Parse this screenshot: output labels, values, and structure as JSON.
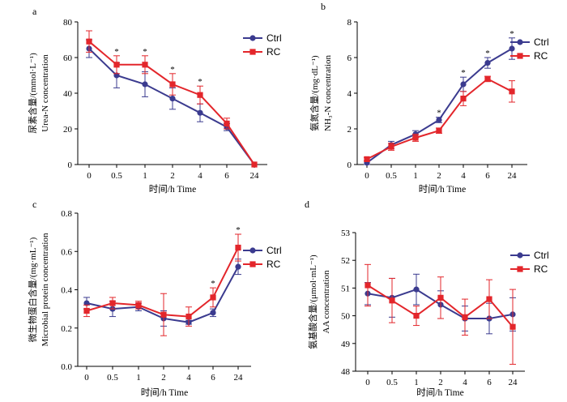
{
  "colors": {
    "Ctrl": "#3b3b8f",
    "RC": "#e3262b"
  },
  "chart_data": [
    {
      "panel": "a",
      "type": "line",
      "categories": [
        "0",
        "0.5",
        "1",
        "2",
        "4",
        "6",
        "24"
      ],
      "ylabel_cn": "尿素含量/(mmol·L⁻¹)",
      "ylabel_en": "Urea-N concentration",
      "xlabel": "时间/h Time",
      "ylim": [
        0,
        80
      ],
      "yticks": [
        "0",
        "20",
        "40",
        "60",
        "80"
      ],
      "legend": "top-right",
      "series": [
        {
          "name": "Ctrl",
          "values": [
            65,
            50,
            45,
            37,
            29,
            21,
            0
          ],
          "errors": [
            5,
            7,
            7,
            6,
            5,
            2,
            0
          ]
        },
        {
          "name": "RC",
          "values": [
            69,
            56,
            56,
            45,
            39,
            23,
            0
          ],
          "errors": [
            6,
            5,
            5,
            6,
            5,
            3,
            0
          ]
        }
      ],
      "significance": [
        "",
        "*",
        "*",
        "*",
        "*",
        "",
        ""
      ]
    },
    {
      "panel": "b",
      "type": "line",
      "categories": [
        "0",
        "0.5",
        "1",
        "2",
        "4",
        "6",
        "24"
      ],
      "ylabel_cn": "氨氮含量/(mg·dL⁻¹)",
      "ylabel_en": "NH₃-N concentration",
      "xlabel": "时间/h Time",
      "ylim": [
        0,
        8
      ],
      "yticks": [
        "0",
        "2",
        "4",
        "6",
        "8"
      ],
      "legend": "top-right",
      "series": [
        {
          "name": "Ctrl",
          "values": [
            0.1,
            1.1,
            1.7,
            2.5,
            4.5,
            5.7,
            6.5
          ],
          "errors": [
            0.1,
            0.2,
            0.2,
            0.15,
            0.4,
            0.3,
            0.6
          ]
        },
        {
          "name": "RC",
          "values": [
            0.3,
            1.0,
            1.5,
            1.9,
            3.7,
            4.8,
            4.1
          ],
          "errors": [
            0.1,
            0.2,
            0.2,
            0.15,
            0.4,
            0.15,
            0.6
          ]
        }
      ],
      "significance": [
        "",
        "",
        "",
        "*",
        "*",
        "*",
        "*"
      ]
    },
    {
      "panel": "c",
      "type": "line",
      "categories": [
        "0",
        "0.5",
        "1",
        "2",
        "4",
        "6",
        "24"
      ],
      "ylabel_cn": "微生物蛋白含量/(mg·mL⁻¹)",
      "ylabel_en": "Microbial protein concentration",
      "xlabel": "时间/h Time",
      "ylim": [
        0,
        0.8
      ],
      "yticks": [
        "0.0",
        "0.2",
        "0.4",
        "0.6",
        "0.8"
      ],
      "legend": "top-right",
      "series": [
        {
          "name": "Ctrl",
          "values": [
            0.33,
            0.3,
            0.31,
            0.25,
            0.23,
            0.28,
            0.52
          ],
          "errors": [
            0.03,
            0.04,
            0.02,
            0.04,
            0.01,
            0.02,
            0.04
          ]
        },
        {
          "name": "RC",
          "values": [
            0.29,
            0.33,
            0.32,
            0.27,
            0.26,
            0.36,
            0.62
          ],
          "errors": [
            0.03,
            0.03,
            0.02,
            0.11,
            0.05,
            0.05,
            0.07
          ]
        }
      ],
      "significance": [
        "",
        "",
        "",
        "",
        "",
        "*",
        "*"
      ]
    },
    {
      "panel": "d",
      "type": "line",
      "categories": [
        "0",
        "0.5",
        "1",
        "2",
        "4",
        "6",
        "24"
      ],
      "ylabel_cn": "氨基酸含量/(μmol·mL⁻¹)",
      "ylabel_en": "AA concentration",
      "xlabel": "时间/h Time",
      "ylim": [
        48,
        53
      ],
      "yticks": [
        "48",
        "49",
        "50",
        "51",
        "52",
        "53"
      ],
      "legend": "top-right",
      "series": [
        {
          "name": "Ctrl",
          "values": [
            50.8,
            50.65,
            50.95,
            50.4,
            49.9,
            49.9,
            50.05
          ],
          "errors": [
            0.4,
            0.7,
            0.55,
            0.5,
            0.45,
            0.55,
            0.6
          ]
        },
        {
          "name": "RC",
          "values": [
            51.1,
            50.55,
            50.0,
            50.65,
            49.95,
            50.6,
            49.6
          ],
          "errors": [
            0.75,
            0.8,
            0.35,
            0.75,
            0.65,
            0.7,
            1.35
          ]
        }
      ],
      "significance": [
        "",
        "",
        "",
        "",
        "",
        "",
        ""
      ]
    }
  ]
}
